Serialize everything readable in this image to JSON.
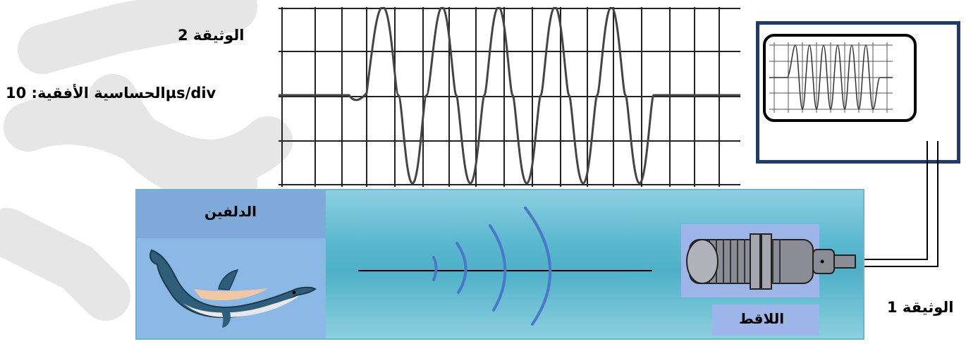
{
  "document2": {
    "title": "الوثيقة 2",
    "sensitivity_label": "الحساسية الأفقية: 10µs/div"
  },
  "document1": {
    "title": "الوثيقة 1"
  },
  "scene": {
    "dolphin_label": "الدلفين",
    "sensor_label": "اللاقط"
  },
  "colors": {
    "water_top": "#8ecfe0",
    "water_mid": "#4fb0c8",
    "panel_blue": "#8cb8e6",
    "scope_border": "#1f3b66",
    "wave_arc": "#4a78c8"
  },
  "icons": {
    "dolphin": "dolphin-icon",
    "sensor": "microphone-sensor-icon",
    "oscilloscope": "oscilloscope-icon"
  }
}
